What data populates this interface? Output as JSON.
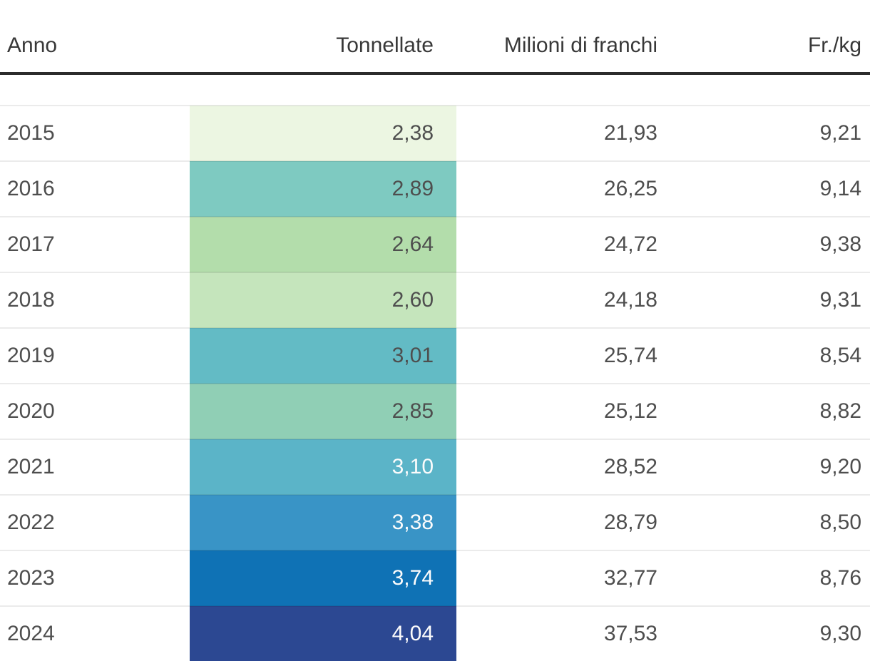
{
  "page": {
    "background": "#ffffff",
    "header_rule_color": "#2b2b2b",
    "row_divider_color": "#ebebeb"
  },
  "table": {
    "columns": [
      {
        "label": "Anno",
        "align": "left"
      },
      {
        "label": "Tonnellate",
        "align": "right"
      },
      {
        "label": "Milioni di franchi",
        "align": "right"
      },
      {
        "label": "Fr./kg",
        "align": "right"
      }
    ],
    "rows": [
      {
        "anno": "2015",
        "tonnellate": "2,38",
        "franchi": "21,93",
        "frkg": "9,21",
        "color": "#ecf6e2",
        "text": "dark"
      },
      {
        "anno": "2016",
        "tonnellate": "2,89",
        "franchi": "26,25",
        "frkg": "9,14",
        "color": "#7ecac1",
        "text": "dark"
      },
      {
        "anno": "2017",
        "tonnellate": "2,64",
        "franchi": "24,72",
        "frkg": "9,38",
        "color": "#b3ddab",
        "text": "dark"
      },
      {
        "anno": "2018",
        "tonnellate": "2,60",
        "franchi": "24,18",
        "frkg": "9,31",
        "color": "#c5e5bc",
        "text": "dark"
      },
      {
        "anno": "2019",
        "tonnellate": "3,01",
        "franchi": "25,74",
        "frkg": "8,54",
        "color": "#63bbc5",
        "text": "dark"
      },
      {
        "anno": "2020",
        "tonnellate": "2,85",
        "franchi": "25,12",
        "frkg": "8,82",
        "color": "#90cfb5",
        "text": "dark"
      },
      {
        "anno": "2021",
        "tonnellate": "3,10",
        "franchi": "28,52",
        "frkg": "9,20",
        "color": "#5bb4c8",
        "text": "light"
      },
      {
        "anno": "2022",
        "tonnellate": "3,38",
        "franchi": "28,79",
        "frkg": "8,50",
        "color": "#3994c6",
        "text": "light"
      },
      {
        "anno": "2023",
        "tonnellate": "3,74",
        "franchi": "32,77",
        "frkg": "8,76",
        "color": "#0f72b5",
        "text": "light"
      },
      {
        "anno": "2024",
        "tonnellate": "4,04",
        "franchi": "37,53",
        "frkg": "9,30",
        "color": "#2c4892",
        "text": "light"
      }
    ]
  },
  "chart_data": {
    "type": "table",
    "columns": [
      "Anno",
      "Tonnellate",
      "Milioni di franchi",
      "Fr./kg"
    ],
    "categories": [
      2015,
      2016,
      2017,
      2018,
      2019,
      2020,
      2021,
      2022,
      2023,
      2024
    ],
    "series": [
      {
        "name": "Tonnellate",
        "values": [
          2.38,
          2.89,
          2.64,
          2.6,
          3.01,
          2.85,
          3.1,
          3.38,
          3.74,
          4.04
        ]
      },
      {
        "name": "Milioni di franchi",
        "values": [
          21.93,
          26.25,
          24.72,
          24.18,
          25.74,
          25.12,
          28.52,
          28.79,
          32.77,
          37.53
        ]
      },
      {
        "name": "Fr./kg",
        "values": [
          9.21,
          9.14,
          9.38,
          9.31,
          8.54,
          8.82,
          9.2,
          8.5,
          8.76,
          9.3
        ]
      }
    ],
    "heatmap_column": "Tonnellate",
    "heatmap_cell_colors": [
      "#ecf6e2",
      "#7ecac1",
      "#b3ddab",
      "#c5e5bc",
      "#63bbc5",
      "#90cfb5",
      "#5bb4c8",
      "#3994c6",
      "#0f72b5",
      "#2c4892"
    ],
    "decimal_separator": ","
  }
}
